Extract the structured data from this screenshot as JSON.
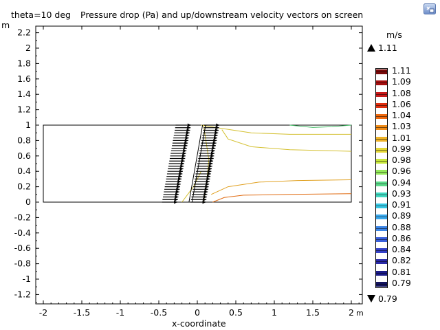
{
  "title": {
    "prefix": "theta=10 deg",
    "main": "Pressure drop (Pa) and up/downstream velocity vectors on screen"
  },
  "toolbar": {
    "zoom_icon": "zoom-to-fit-icon"
  },
  "axes": {
    "x_label": "x-coordinate",
    "x_unit": "m",
    "y_unit": "m",
    "x_ticks": [
      "-2",
      "-1.5",
      "-1",
      "-0.5",
      "0",
      "0.5",
      "1",
      "1.5",
      "2"
    ],
    "y_ticks": [
      "2.2",
      "2",
      "1.8",
      "1.6",
      "1.4",
      "1.2",
      "1",
      "0.8",
      "0.6",
      "0.4",
      "0.2",
      "0",
      "-0.2",
      "-0.4",
      "-0.6",
      "-0.8",
      "-1",
      "-1.2"
    ]
  },
  "legend": {
    "unit": "m/s",
    "max_label": "1.11",
    "min_label": "0.79",
    "values": [
      "1.11",
      "1.09",
      "1.08",
      "1.06",
      "1.04",
      "1.03",
      "1.01",
      "0.99",
      "0.98",
      "0.96",
      "0.94",
      "0.93",
      "0.91",
      "0.89",
      "0.88",
      "0.86",
      "0.84",
      "0.82",
      "0.81",
      "0.79"
    ],
    "colors": [
      "#7a0a0a",
      "#a50f0f",
      "#c81a1a",
      "#e03010",
      "#ee6a10",
      "#f08c18",
      "#f0b428",
      "#e4d834",
      "#c8e83c",
      "#94e85a",
      "#5cdc8a",
      "#40d8c0",
      "#38c8e4",
      "#3aa8ec",
      "#3c86e8",
      "#3a60dc",
      "#3440c8",
      "#2a2aa8",
      "#1c1c88",
      "#14145e"
    ]
  },
  "chart_data": {
    "type": "scatter",
    "title": "Pressure drop (Pa) and up/downstream velocity vectors on screen",
    "xlabel": "x-coordinate",
    "ylabel": "",
    "xlim": [
      -2.1,
      2.15
    ],
    "ylim": [
      -1.3,
      2.3
    ],
    "grid": false,
    "domain": {
      "x": [
        -2,
        2
      ],
      "y": [
        0,
        1
      ]
    },
    "screen_angle_deg": 10,
    "screen_x_at_mid": 0,
    "vector_color": "#000000",
    "contours": [
      {
        "color": "#d4c030",
        "points": [
          [
            0.05,
            1.0
          ],
          [
            0.3,
            0.96
          ],
          [
            0.7,
            0.9
          ],
          [
            1.2,
            0.88
          ],
          [
            2.0,
            0.88
          ]
        ]
      },
      {
        "color": "#d4c030",
        "points": [
          [
            0.32,
            0.94
          ],
          [
            0.4,
            0.82
          ],
          [
            0.7,
            0.72
          ],
          [
            1.2,
            0.68
          ],
          [
            2.0,
            0.66
          ]
        ]
      },
      {
        "color": "#e0a020",
        "points": [
          [
            0.18,
            0.1
          ],
          [
            0.4,
            0.2
          ],
          [
            0.8,
            0.26
          ],
          [
            1.3,
            0.28
          ],
          [
            2.0,
            0.29
          ]
        ]
      },
      {
        "color": "#e06a10",
        "points": [
          [
            0.2,
            0.0
          ],
          [
            0.35,
            0.06
          ],
          [
            0.6,
            0.09
          ],
          [
            1.2,
            0.1
          ],
          [
            2.0,
            0.11
          ]
        ]
      },
      {
        "color": "#44bb66",
        "points": [
          [
            1.2,
            1.0
          ],
          [
            1.5,
            0.97
          ],
          [
            1.75,
            0.98
          ],
          [
            2.0,
            1.0
          ]
        ]
      },
      {
        "color": "#d4c030",
        "points": [
          [
            -0.2,
            0.0
          ],
          [
            -0.05,
            0.2
          ],
          [
            0.05,
            0.4
          ]
        ]
      },
      {
        "color": "#d4c030",
        "points": [
          [
            0.08,
            0.0
          ],
          [
            0.12,
            0.25
          ],
          [
            0.15,
            0.55
          ],
          [
            0.08,
            1.0
          ]
        ]
      }
    ]
  }
}
